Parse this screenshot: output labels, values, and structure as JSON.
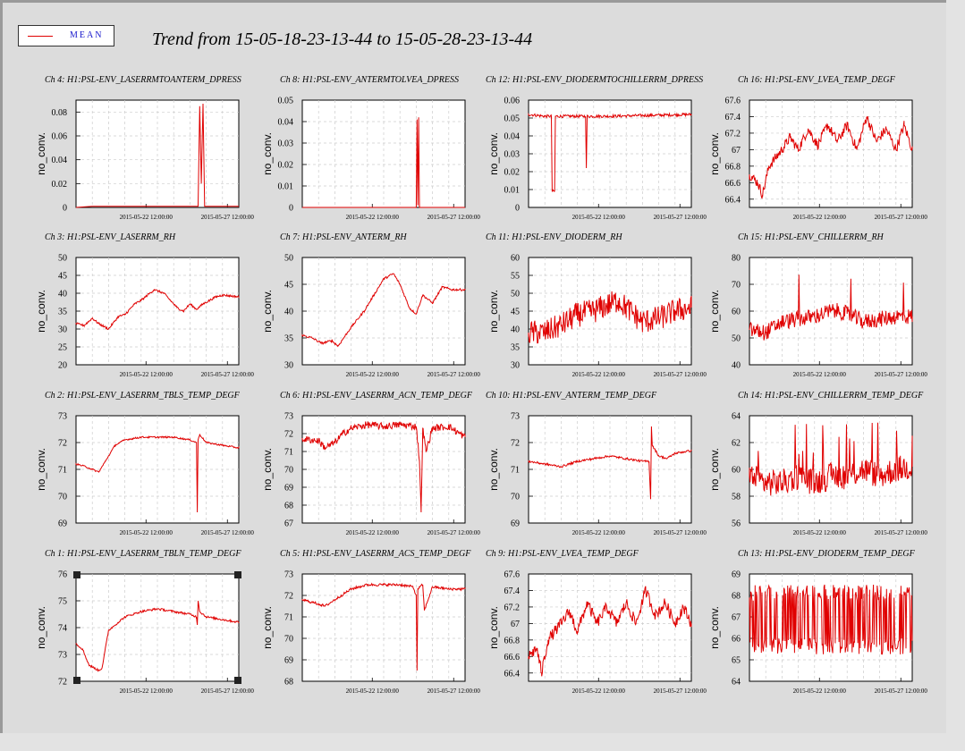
{
  "legend": {
    "label": "MEAN",
    "color": "#e00000"
  },
  "title": "Trend from 15-05-18-23-13-44 to 15-05-28-23-13-44",
  "chart_data": [
    {
      "type": "line",
      "title": "Ch 4: H1:PSL-ENV_LASERRMTOANTERM_DPRESS",
      "ylabel": "no_conv.",
      "ylim": [
        0,
        0.09
      ],
      "yticks": [
        "0",
        "0.02",
        "0.04",
        "0.06",
        "0.08"
      ],
      "ytick_values": [
        0,
        0.02,
        0.04,
        0.06,
        0.08
      ],
      "xticks": [
        "2015-05-22 12:00:00",
        "2015-05-27 12:00:00"
      ],
      "x": [
        0,
        0.1,
        0.5,
        0.75,
        0.76,
        0.77,
        0.78,
        0.79,
        0.8,
        1
      ],
      "values": [
        0,
        0.001,
        0.001,
        0.001,
        0.085,
        0.02,
        0.087,
        0.001,
        0.001,
        0.001
      ]
    },
    {
      "type": "line",
      "title": "Ch 8: H1:PSL-ENV_ANTERMTOLVEA_DPRESS",
      "ylabel": "no_conv.",
      "ylim": [
        0,
        0.05
      ],
      "yticks": [
        "0",
        "0.01",
        "0.02",
        "0.03",
        "0.04",
        "0.05"
      ],
      "ytick_values": [
        0,
        0.01,
        0.02,
        0.03,
        0.04,
        0.05
      ],
      "xticks": [
        "2015-05-22 12:00:00",
        "2015-05-27 12:00:00"
      ],
      "x": [
        0,
        0.5,
        0.7,
        0.705,
        0.71,
        0.715,
        0.72,
        1
      ],
      "values": [
        0,
        0,
        0,
        0.041,
        0.001,
        0.042,
        0,
        0
      ]
    },
    {
      "type": "line",
      "title": "Ch 12: H1:PSL-ENV_DIODERMTOCHILLERRM_DPRESS",
      "ylabel": "no_conv.",
      "ylim": [
        0,
        0.06
      ],
      "yticks": [
        "0",
        "0.01",
        "0.02",
        "0.03",
        "0.04",
        "0.05",
        "0.06"
      ],
      "ytick_values": [
        0,
        0.01,
        0.02,
        0.03,
        0.04,
        0.05,
        0.06
      ],
      "xticks": [
        "2015-05-22 12:00:00",
        "2015-05-27 12:00:00"
      ],
      "x": [
        0,
        0.1,
        0.14,
        0.145,
        0.16,
        0.165,
        0.35,
        0.355,
        0.36,
        0.5,
        1
      ],
      "values": [
        0.052,
        0.051,
        0.051,
        0.009,
        0.009,
        0.051,
        0.051,
        0.022,
        0.051,
        0.051,
        0.052
      ],
      "noise": 0.0008
    },
    {
      "type": "line",
      "title": "Ch 16: H1:PSL-ENV_LVEA_TEMP_DEGF",
      "ylabel": "no_conv.",
      "ylim": [
        66.3,
        67.6
      ],
      "yticks": [
        "66.4",
        "66.6",
        "66.8",
        "67",
        "67.2",
        "67.4",
        "67.6"
      ],
      "ytick_values": [
        66.4,
        66.6,
        66.8,
        67,
        67.2,
        67.4,
        67.6
      ],
      "xticks": [
        "2015-05-22 12:00:00",
        "2015-05-27 12:00:00"
      ],
      "x": [
        0,
        0.05,
        0.08,
        0.12,
        0.2,
        0.25,
        0.3,
        0.36,
        0.42,
        0.48,
        0.54,
        0.6,
        0.66,
        0.72,
        0.78,
        0.84,
        0.9,
        0.95,
        1
      ],
      "values": [
        66.7,
        66.6,
        66.45,
        66.8,
        67.0,
        67.15,
        67.0,
        67.25,
        67.05,
        67.3,
        67.1,
        67.3,
        67.0,
        67.4,
        67.1,
        67.25,
        67.0,
        67.3,
        67.0
      ],
      "noise": 0.06
    },
    {
      "type": "line",
      "title": "Ch 3: H1:PSL-ENV_LASERRM_RH",
      "ylabel": "no_conv.",
      "ylim": [
        20,
        50
      ],
      "yticks": [
        "20",
        "25",
        "30",
        "35",
        "40",
        "45",
        "50"
      ],
      "ytick_values": [
        20,
        25,
        30,
        35,
        40,
        45,
        50
      ],
      "xticks": [
        "2015-05-22 12:00:00",
        "2015-05-27 12:00:00"
      ],
      "x": [
        0,
        0.05,
        0.1,
        0.14,
        0.2,
        0.26,
        0.3,
        0.36,
        0.4,
        0.44,
        0.48,
        0.54,
        0.58,
        0.62,
        0.66,
        0.7,
        0.74,
        0.78,
        0.82,
        0.86,
        0.9,
        1
      ],
      "values": [
        31.5,
        31,
        33,
        31.5,
        30,
        33.5,
        34,
        37,
        38,
        39.5,
        41,
        40,
        38,
        36,
        35,
        37,
        35.5,
        37,
        38,
        39,
        39.5,
        39
      ],
      "noise": 0.3
    },
    {
      "type": "line",
      "title": "Ch 7: H1:PSL-ENV_ANTERM_RH",
      "ylabel": "no_conv.",
      "ylim": [
        30,
        50
      ],
      "yticks": [
        "30",
        "35",
        "40",
        "45",
        "50"
      ],
      "ytick_values": [
        30,
        35,
        40,
        45,
        50
      ],
      "xticks": [
        "2015-05-22 12:00:00",
        "2015-05-27 12:00:00"
      ],
      "x": [
        0,
        0.06,
        0.12,
        0.18,
        0.22,
        0.3,
        0.38,
        0.44,
        0.5,
        0.56,
        0.6,
        0.66,
        0.7,
        0.74,
        0.8,
        0.86,
        0.92,
        1
      ],
      "values": [
        35.5,
        35,
        34,
        34.5,
        33.5,
        37,
        40,
        43,
        46,
        47,
        45,
        40.5,
        39.5,
        43,
        41.5,
        44.5,
        44,
        44
      ],
      "noise": 0.2
    },
    {
      "type": "line",
      "title": "Ch 11: H1:PSL-ENV_DIODERM_RH",
      "ylabel": "no_conv.",
      "ylim": [
        30,
        60
      ],
      "yticks": [
        "30",
        "35",
        "40",
        "45",
        "50",
        "55",
        "60"
      ],
      "ytick_values": [
        30,
        35,
        40,
        45,
        50,
        55,
        60
      ],
      "xticks": [
        "2015-05-22 12:00:00",
        "2015-05-27 12:00:00"
      ],
      "x": [
        0,
        0.1,
        0.2,
        0.3,
        0.4,
        0.5,
        0.55,
        0.6,
        0.7,
        0.8,
        0.9,
        1
      ],
      "values": [
        39,
        39,
        41,
        44,
        45,
        47,
        48,
        46,
        42,
        43,
        45,
        46
      ],
      "noise": 3.5
    },
    {
      "type": "line",
      "title": "Ch 15: H1:PSL-ENV_CHILLERRM_RH",
      "ylabel": "no_conv.",
      "ylim": [
        40,
        80
      ],
      "yticks": [
        "40",
        "50",
        "60",
        "70",
        "80"
      ],
      "ytick_values": [
        40,
        50,
        60,
        70,
        80
      ],
      "xticks": [
        "2015-05-22 12:00:00",
        "2015-05-27 12:00:00"
      ],
      "x": [
        0,
        0.1,
        0.2,
        0.3,
        0.4,
        0.5,
        0.55,
        0.6,
        0.7,
        0.8,
        0.9,
        1
      ],
      "values": [
        53,
        52,
        56,
        57,
        58,
        60,
        60,
        59,
        56,
        57,
        58,
        58
      ],
      "noise": 3,
      "spikes": 0.03
    },
    {
      "type": "line",
      "title": "Ch 2: H1:PSL-ENV_LASERRM_TBLS_TEMP_DEGF",
      "ylabel": "no_conv.",
      "ylim": [
        69,
        73
      ],
      "yticks": [
        "69",
        "70",
        "71",
        "72",
        "73"
      ],
      "ytick_values": [
        69,
        70,
        71,
        72,
        73
      ],
      "xticks": [
        "2015-05-22 12:00:00",
        "2015-05-27 12:00:00"
      ],
      "x": [
        0,
        0.06,
        0.1,
        0.14,
        0.18,
        0.24,
        0.3,
        0.4,
        0.5,
        0.6,
        0.7,
        0.74,
        0.745,
        0.75,
        0.76,
        0.8,
        0.9,
        1
      ],
      "values": [
        71.2,
        71.1,
        71.0,
        70.9,
        71.3,
        71.9,
        72.1,
        72.2,
        72.2,
        72.2,
        72.1,
        72.0,
        69.4,
        72.1,
        72.3,
        72.0,
        71.9,
        71.8
      ],
      "noise": 0.03
    },
    {
      "type": "line",
      "title": "Ch 6: H1:PSL-ENV_LASERRM_ACN_TEMP_DEGF",
      "ylabel": "no_conv.",
      "ylim": [
        67,
        73
      ],
      "yticks": [
        "67",
        "68",
        "69",
        "70",
        "71",
        "72",
        "73"
      ],
      "ytick_values": [
        67,
        68,
        69,
        70,
        71,
        72,
        73
      ],
      "xticks": [
        "2015-05-22 12:00:00",
        "2015-05-27 12:00:00"
      ],
      "x": [
        0,
        0.1,
        0.14,
        0.2,
        0.25,
        0.3,
        0.4,
        0.5,
        0.6,
        0.7,
        0.72,
        0.73,
        0.74,
        0.76,
        0.8,
        0.9,
        1
      ],
      "values": [
        71.7,
        71.6,
        71.2,
        71.5,
        72.0,
        72.3,
        72.5,
        72.4,
        72.5,
        72.4,
        70.5,
        67.6,
        72.3,
        71.0,
        72.3,
        72.4,
        71.8
      ],
      "noise": 0.2
    },
    {
      "type": "line",
      "title": "Ch 10: H1:PSL-ENV_ANTERM_TEMP_DEGF",
      "ylabel": "no_conv.",
      "ylim": [
        69,
        73
      ],
      "yticks": [
        "69",
        "70",
        "71",
        "72",
        "73"
      ],
      "ytick_values": [
        69,
        70,
        71,
        72,
        73
      ],
      "xticks": [
        "2015-05-22 12:00:00",
        "2015-05-27 12:00:00"
      ],
      "x": [
        0,
        0.1,
        0.2,
        0.3,
        0.4,
        0.5,
        0.6,
        0.7,
        0.74,
        0.75,
        0.755,
        0.76,
        0.8,
        0.85,
        0.9,
        1
      ],
      "values": [
        71.3,
        71.2,
        71.1,
        71.3,
        71.4,
        71.5,
        71.4,
        71.3,
        71.3,
        69.9,
        72.6,
        71.9,
        71.5,
        71.4,
        71.6,
        71.7
      ],
      "noise": 0.04
    },
    {
      "type": "line",
      "title": "Ch 14: H1:PSL-ENV_CHILLERRM_TEMP_DEGF",
      "ylabel": "no_conv.",
      "ylim": [
        56,
        64
      ],
      "yticks": [
        "56",
        "58",
        "60",
        "62",
        "64"
      ],
      "ytick_values": [
        56,
        58,
        60,
        62,
        64
      ],
      "xticks": [
        "2015-05-22 12:00:00",
        "2015-05-27 12:00:00"
      ],
      "x": [
        0,
        0.1,
        0.2,
        0.3,
        0.4,
        0.5,
        0.6,
        0.7,
        0.8,
        0.9,
        1
      ],
      "values": [
        59.5,
        59,
        59,
        59.5,
        59,
        59.5,
        59.5,
        60,
        59.5,
        60,
        60.2
      ],
      "noise": 1.0,
      "spikes": 0.03
    },
    {
      "type": "line",
      "title": "Ch 1: H1:PSL-ENV_LASERRM_TBLN_TEMP_DEGF",
      "ylabel": "no_conv.",
      "ylim": [
        72,
        76
      ],
      "yticks": [
        "72",
        "73",
        "74",
        "75",
        "76"
      ],
      "ytick_values": [
        72,
        73,
        74,
        75,
        76
      ],
      "xticks": [
        "2015-05-22 12:00:00",
        "2015-05-27 12:00:00"
      ],
      "x": [
        0,
        0.04,
        0.08,
        0.14,
        0.16,
        0.2,
        0.3,
        0.4,
        0.5,
        0.6,
        0.7,
        0.74,
        0.745,
        0.75,
        0.76,
        0.8,
        0.9,
        1
      ],
      "values": [
        73.4,
        73.2,
        72.6,
        72.4,
        72.5,
        73.9,
        74.4,
        74.6,
        74.7,
        74.6,
        74.5,
        74.4,
        74.1,
        75.0,
        74.6,
        74.4,
        74.3,
        74.2
      ],
      "noise": 0.04
    },
    {
      "type": "line",
      "title": "Ch 5: H1:PSL-ENV_LASERRM_ACS_TEMP_DEGF",
      "ylabel": "no_conv.",
      "ylim": [
        68,
        73
      ],
      "yticks": [
        "68",
        "69",
        "70",
        "71",
        "72",
        "73"
      ],
      "ytick_values": [
        68,
        69,
        70,
        71,
        72,
        73
      ],
      "xticks": [
        "2015-05-22 12:00:00",
        "2015-05-27 12:00:00"
      ],
      "x": [
        0,
        0.1,
        0.14,
        0.2,
        0.3,
        0.4,
        0.5,
        0.6,
        0.68,
        0.7,
        0.705,
        0.71,
        0.74,
        0.75,
        0.8,
        0.9,
        1
      ],
      "values": [
        71.8,
        71.6,
        71.5,
        71.8,
        72.3,
        72.5,
        72.5,
        72.5,
        72.4,
        72.0,
        68.5,
        72.3,
        72.5,
        71.3,
        72.4,
        72.3,
        72.3
      ],
      "noise": 0.06
    },
    {
      "type": "line",
      "title": "Ch 9: H1:PSL-ENV_LVEA_TEMP_DEGF",
      "ylabel": "no_conv.",
      "ylim": [
        66.3,
        67.6
      ],
      "yticks": [
        "66.4",
        "66.6",
        "66.8",
        "67",
        "67.2",
        "67.4",
        "67.6"
      ],
      "ytick_values": [
        66.4,
        66.6,
        66.8,
        67,
        67.2,
        67.4,
        67.6
      ],
      "xticks": [
        "2015-05-22 12:00:00",
        "2015-05-27 12:00:00"
      ],
      "x": [
        0,
        0.05,
        0.08,
        0.12,
        0.2,
        0.25,
        0.3,
        0.36,
        0.42,
        0.48,
        0.54,
        0.6,
        0.66,
        0.72,
        0.78,
        0.84,
        0.9,
        0.95,
        1
      ],
      "values": [
        66.6,
        66.7,
        66.4,
        66.8,
        67.0,
        67.15,
        66.9,
        67.25,
        67.0,
        67.2,
        67.0,
        67.25,
        67.0,
        67.4,
        67.1,
        67.25,
        67.0,
        67.2,
        67.0
      ],
      "noise": 0.07
    },
    {
      "type": "line",
      "title": "Ch 13: H1:PSL-ENV_DIODERM_TEMP_DEGF",
      "ylabel": "no_conv.",
      "ylim": [
        64,
        69
      ],
      "yticks": [
        "64",
        "65",
        "66",
        "67",
        "68",
        "69"
      ],
      "ytick_values": [
        64,
        65,
        66,
        67,
        68,
        69
      ],
      "xticks": [
        "2015-05-22 12:00:00",
        "2015-05-27 12:00:00"
      ],
      "x": [
        0,
        0.2,
        0.4,
        0.6,
        0.8,
        1
      ],
      "values": [
        66.5,
        66.3,
        66.4,
        66.6,
        66.3,
        66.5
      ],
      "noise": 1.4,
      "square": true
    }
  ]
}
